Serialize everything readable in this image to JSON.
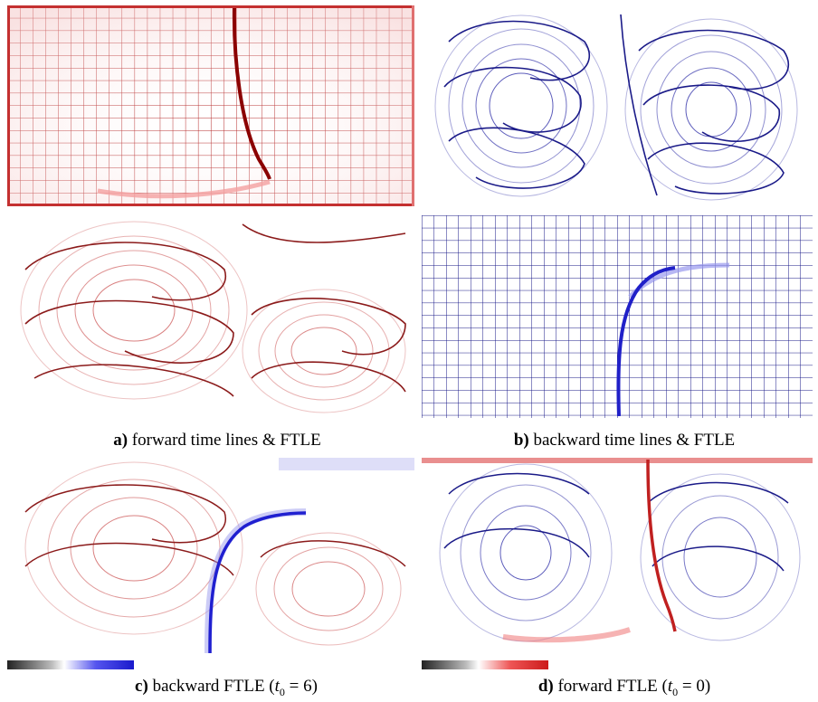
{
  "figure": {
    "captions": {
      "a": {
        "letter": "a)",
        "text": " forward time lines & FTLE"
      },
      "b": {
        "letter": "b)",
        "text": " backward time lines & FTLE"
      },
      "c": {
        "letter": "c)",
        "text_pre": " backward FTLE (",
        "t": "t",
        "sub": "0",
        "text_post": " = 6)"
      },
      "d": {
        "letter": "d)",
        "text_pre": " forward FTLE (",
        "t": "t",
        "sub": "0",
        "text_post": " = 0)"
      }
    },
    "colors": {
      "forward_red": "#c62828",
      "backward_blue": "#1a1aa8",
      "ridge_blue": "#2020d0",
      "ridge_red": "#d03030"
    }
  }
}
